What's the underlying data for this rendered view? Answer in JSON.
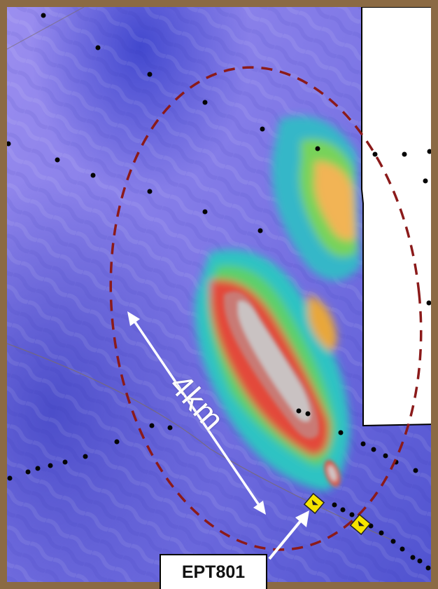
{
  "map": {
    "distance_label": "4km",
    "well_label": "EPT801",
    "colors": {
      "frame": "#8b6a44",
      "background_low": "#6a5fd8",
      "anomaly_outline": "#8b1a1a",
      "arrow": "#ffffff",
      "well_marker": "#f5e400"
    },
    "icons": [
      "well-marker-icon",
      "station-dot-icon",
      "arrow-icon"
    ]
  }
}
